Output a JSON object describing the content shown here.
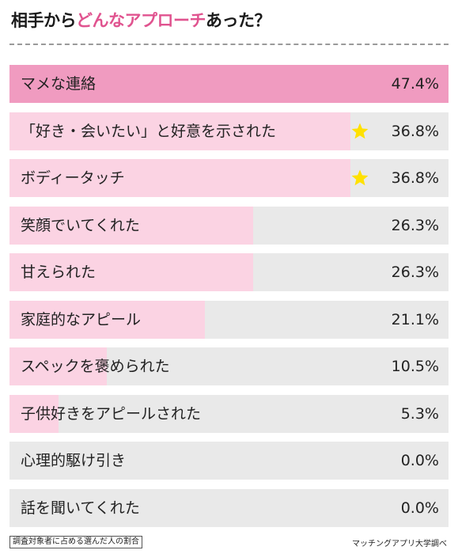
{
  "title_parts": {
    "before": "相手から",
    "accent": "どんなアプローチ",
    "after": "あった？"
  },
  "colors": {
    "top_bar": "#f09bc0",
    "bar": "#fbd3e3",
    "track": "#e9e9e9",
    "accent": "#e0538f",
    "star": "#ffe100"
  },
  "chart_data": {
    "type": "bar",
    "orientation": "horizontal",
    "title": "相手からどんなアプローチあった？",
    "categories": [
      "マメな連絡",
      "「好き・会いたい」と好意を示された",
      "ボディータッチ",
      "笑顔でいてくれた",
      "甘えられた",
      "家庭的なアピール",
      "スペックを褒められた",
      "子供好きをアピールされた",
      "心理的駆け引き",
      "話を聞いてくれた"
    ],
    "values": [
      47.4,
      36.8,
      36.8,
      26.3,
      26.3,
      21.1,
      10.5,
      5.3,
      0.0,
      0.0
    ],
    "value_labels": [
      "47.4%",
      "36.8%",
      "36.8%",
      "26.3%",
      "26.3%",
      "21.1%",
      "10.5%",
      "5.3%",
      "0.0%",
      "0.0%"
    ],
    "starred": [
      false,
      true,
      true,
      false,
      false,
      false,
      false,
      false,
      false,
      false
    ],
    "xlim": [
      0,
      47.4
    ],
    "unit": "%",
    "grid": false,
    "legend": "none"
  },
  "footnote": "調査対象者に占める選んだ人の割合",
  "source": "マッチングアプリ大学調べ"
}
